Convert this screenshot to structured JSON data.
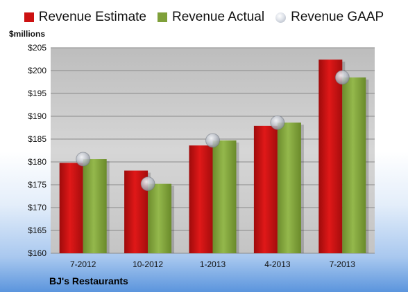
{
  "legend": {
    "estimate": "Revenue Estimate",
    "actual": "Revenue Actual",
    "gaap": "Revenue GAAP"
  },
  "unit_label": "$millions",
  "company": "BJ's Restaurants",
  "colors": {
    "estimate": "#cc1111",
    "actual": "#7fa03a",
    "gaap": "#b0b6c2",
    "plot_bg": "#c9c9c9"
  },
  "chart_data": {
    "type": "bar",
    "categories": [
      "7-2012",
      "10-2012",
      "1-2013",
      "4-2013",
      "7-2013"
    ],
    "series": [
      {
        "name": "Revenue Estimate",
        "values": [
          179.8,
          178.1,
          183.6,
          187.9,
          202.4
        ]
      },
      {
        "name": "Revenue Actual",
        "values": [
          180.6,
          175.2,
          184.7,
          188.6,
          198.5
        ]
      },
      {
        "name": "Revenue GAAP",
        "values": [
          180.6,
          175.2,
          184.7,
          188.6,
          198.5
        ],
        "style": "marker"
      }
    ],
    "title": "",
    "xlabel": "",
    "ylabel": "$millions",
    "ylim": [
      160,
      205
    ],
    "yticks": [
      160,
      165,
      170,
      175,
      180,
      185,
      190,
      195,
      200,
      205
    ],
    "ytick_prefix": "$",
    "grid": true,
    "legend_position": "top"
  }
}
